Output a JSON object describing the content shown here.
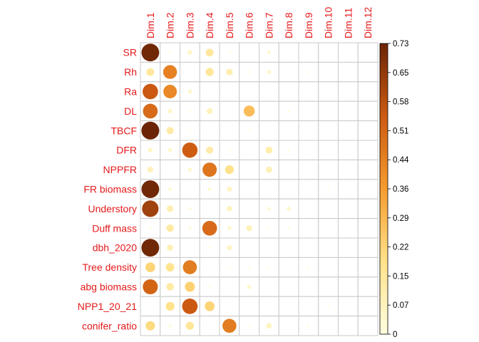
{
  "chart_data": {
    "type": "heatmap",
    "columns": [
      "Dim.1",
      "Dim.2",
      "Dim.3",
      "Dim.4",
      "Dim.5",
      "Dim.6",
      "Dim.7",
      "Dim.8",
      "Dim.9",
      "Dim.10",
      "Dim.11",
      "Dim.12"
    ],
    "rows": [
      "SR",
      "Rh",
      "Ra",
      "DL",
      "TBCF",
      "DFR",
      "NPPFR",
      "FR biomass",
      "Understory",
      "Duff mass",
      "dbh_2020",
      "Tree density",
      "abg biomass",
      "NPP1_20_21",
      "conifer_ratio"
    ],
    "values": [
      [
        0.72,
        0.01,
        0.05,
        0.14,
        0.01,
        0.0,
        0.03,
        0.0,
        0.0,
        0.0,
        0.0,
        0.0
      ],
      [
        0.14,
        0.44,
        0.0,
        0.15,
        0.1,
        0.01,
        0.04,
        0.0,
        0.01,
        0.0,
        0.0,
        0.0
      ],
      [
        0.55,
        0.42,
        0.04,
        0.0,
        0.0,
        0.0,
        0.0,
        0.0,
        0.0,
        0.0,
        0.0,
        0.0
      ],
      [
        0.5,
        0.05,
        0.01,
        0.08,
        0.0,
        0.28,
        0.0,
        0.01,
        0.0,
        0.0,
        0.0,
        0.0
      ],
      [
        0.73,
        0.12,
        0.01,
        0.0,
        0.0,
        0.01,
        0.0,
        0.0,
        0.0,
        0.0,
        0.0,
        0.0
      ],
      [
        0.05,
        0.04,
        0.54,
        0.12,
        0.01,
        0.0,
        0.11,
        0.01,
        0.0,
        0.0,
        0.0,
        0.0
      ],
      [
        0.08,
        0.0,
        0.04,
        0.47,
        0.18,
        0.0,
        0.09,
        0.0,
        0.0,
        0.0,
        0.0,
        0.0
      ],
      [
        0.72,
        0.03,
        0.0,
        0.03,
        0.06,
        0.0,
        0.0,
        0.0,
        0.0,
        0.01,
        0.0,
        0.0
      ],
      [
        0.63,
        0.1,
        0.02,
        0.0,
        0.07,
        0.0,
        0.03,
        0.04,
        0.0,
        0.0,
        0.0,
        0.0
      ],
      [
        0.01,
        0.13,
        0.02,
        0.5,
        0.04,
        0.08,
        0.01,
        0.01,
        0.0,
        0.0,
        0.0,
        0.0
      ],
      [
        0.72,
        0.09,
        0.0,
        0.01,
        0.06,
        0.0,
        0.0,
        0.0,
        0.0,
        0.0,
        0.0,
        0.0
      ],
      [
        0.22,
        0.17,
        0.45,
        0.0,
        0.01,
        0.01,
        0.01,
        0.0,
        0.01,
        0.0,
        0.0,
        0.0
      ],
      [
        0.52,
        0.13,
        0.23,
        0.01,
        0.0,
        0.04,
        0.0,
        0.0,
        0.0,
        0.0,
        0.0,
        0.0
      ],
      [
        0.0,
        0.18,
        0.55,
        0.22,
        0.0,
        0.0,
        0.0,
        0.0,
        0.0,
        0.01,
        0.0,
        0.0
      ],
      [
        0.2,
        0.02,
        0.15,
        0.0,
        0.45,
        0.01,
        0.07,
        0.0,
        0.01,
        0.0,
        0.0,
        0.0
      ]
    ],
    "colorbar": {
      "range": [
        0,
        0.73
      ],
      "ticks": [
        "0.73",
        "0.65",
        "0.58",
        "0.51",
        "0.44",
        "0.36",
        "0.29",
        "0.22",
        "0.15",
        "0.07",
        "0"
      ],
      "colors": [
        "#fffde0",
        "#ffe28a",
        "#f69c2f",
        "#cc5a12",
        "#6b2506"
      ]
    },
    "label_color": "#e41a1c",
    "grid": true
  }
}
